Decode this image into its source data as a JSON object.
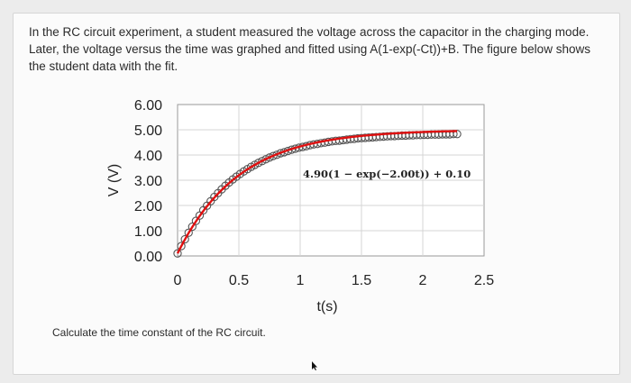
{
  "question": {
    "text": "In the RC circuit experiment, a student measured the voltage across the capacitor in the charging mode. Later, the voltage versus the time was graphed and fitted using A(1-exp(-Ct))+B. The figure below shows the student data with the fit."
  },
  "prompt": {
    "text": "Calculate the time constant of the RC circuit."
  },
  "chart_data": {
    "type": "scatter",
    "xlabel": "t(s)",
    "ylabel": "V (V)",
    "xlim": [
      0,
      2.5
    ],
    "ylim": [
      0,
      6
    ],
    "x_ticks": [
      "0",
      "0.5",
      "1",
      "1.5",
      "2",
      "2.5"
    ],
    "y_ticks": [
      "6.00",
      "5.00",
      "4.00",
      "3.00",
      "2.00",
      "1.00",
      "0.00"
    ],
    "grid": true,
    "annotation": "4.90(1 − exp(−2.00t)) + 0.10",
    "fit": {
      "A": 4.9,
      "C": 2.0,
      "B": 0.1
    },
    "series": [
      {
        "marker": "open-circle",
        "color": "#555555",
        "x": [
          0.0,
          0.03,
          0.06,
          0.09,
          0.12,
          0.15,
          0.18,
          0.21,
          0.24,
          0.27,
          0.3,
          0.33,
          0.36,
          0.39,
          0.42,
          0.45,
          0.48,
          0.51,
          0.54,
          0.57,
          0.6,
          0.63,
          0.66,
          0.69,
          0.72,
          0.75,
          0.78,
          0.81,
          0.84,
          0.87,
          0.9,
          0.93,
          0.96,
          0.99,
          1.02,
          1.05,
          1.08,
          1.11,
          1.14,
          1.17,
          1.2,
          1.23,
          1.26,
          1.29,
          1.32,
          1.35,
          1.38,
          1.41,
          1.44,
          1.47,
          1.5,
          1.53,
          1.56,
          1.59,
          1.62,
          1.65,
          1.68,
          1.71,
          1.74,
          1.77,
          1.8,
          1.83,
          1.86,
          1.89,
          1.92,
          1.95,
          1.98,
          2.01,
          2.04,
          2.07,
          2.1,
          2.13,
          2.16,
          2.19,
          2.22,
          2.25,
          2.28
        ],
        "y": [
          0.1,
          0.39,
          0.66,
          0.92,
          1.16,
          1.39,
          1.6,
          1.81,
          1.99,
          2.17,
          2.34,
          2.49,
          2.64,
          2.78,
          2.91,
          3.03,
          3.14,
          3.25,
          3.35,
          3.44,
          3.53,
          3.61,
          3.69,
          3.76,
          3.83,
          3.9,
          3.96,
          4.01,
          4.07,
          4.11,
          4.16,
          4.21,
          4.25,
          4.29,
          4.32,
          4.35,
          4.39,
          4.42,
          4.44,
          4.47,
          4.49,
          4.52,
          4.54,
          4.56,
          4.57,
          4.59,
          4.61,
          4.63,
          4.64,
          4.66,
          4.67,
          4.68,
          4.69,
          4.7,
          4.71,
          4.72,
          4.73,
          4.74,
          4.75,
          4.75,
          4.76,
          4.77,
          4.77,
          4.78,
          4.78,
          4.79,
          4.79,
          4.8,
          4.8,
          4.81,
          4.81,
          4.81,
          4.82,
          4.82,
          4.82,
          4.83,
          4.83
        ]
      },
      {
        "line": true,
        "color": "#e01010"
      }
    ]
  }
}
